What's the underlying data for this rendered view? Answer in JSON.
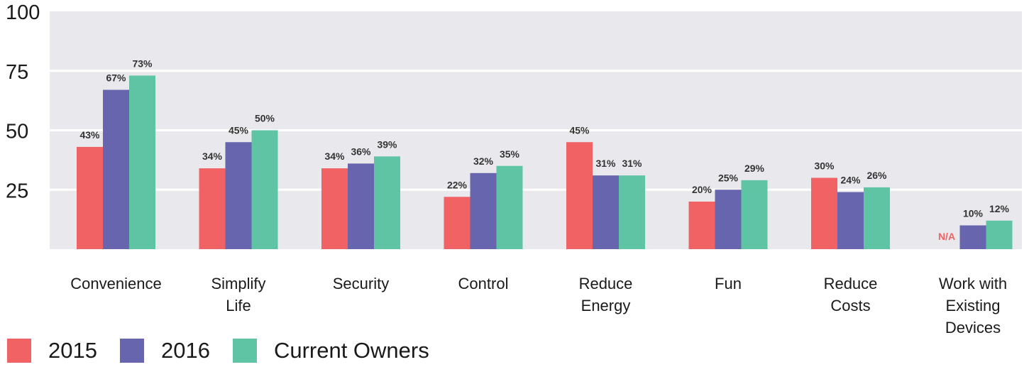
{
  "chart_data": {
    "type": "bar",
    "categories": [
      [
        "Convenience"
      ],
      [
        "Simplify",
        "Life"
      ],
      [
        "Security"
      ],
      [
        "Control"
      ],
      [
        "Reduce",
        "Energy"
      ],
      [
        "Fun"
      ],
      [
        "Reduce",
        "Costs"
      ],
      [
        "Work with",
        "Existing",
        "Devices"
      ]
    ],
    "series": [
      {
        "name": "2015",
        "color": "#f06264",
        "values": [
          43,
          34,
          34,
          22,
          45,
          20,
          30,
          null
        ],
        "labels": [
          "43%",
          "34%",
          "34%",
          "22%",
          "45%",
          "20%",
          "30%",
          "N/A"
        ]
      },
      {
        "name": "2016",
        "color": "#6665ad",
        "values": [
          67,
          45,
          36,
          32,
          31,
          25,
          24,
          10
        ],
        "labels": [
          "67%",
          "45%",
          "36%",
          "32%",
          "31%",
          "25%",
          "24%",
          "10%"
        ]
      },
      {
        "name": "Current Owners",
        "color": "#5ec4a4",
        "values": [
          73,
          50,
          39,
          35,
          31,
          29,
          26,
          12
        ],
        "labels": [
          "73%",
          "50%",
          "39%",
          "35%",
          "31%",
          "29%",
          "26%",
          "12%"
        ]
      }
    ],
    "yticks": [
      "100",
      "75",
      "50",
      "25"
    ],
    "ylim": [
      0,
      100
    ],
    "grid": true,
    "plot_background": "#e9e8ed",
    "legend_position": "bottom-left"
  }
}
